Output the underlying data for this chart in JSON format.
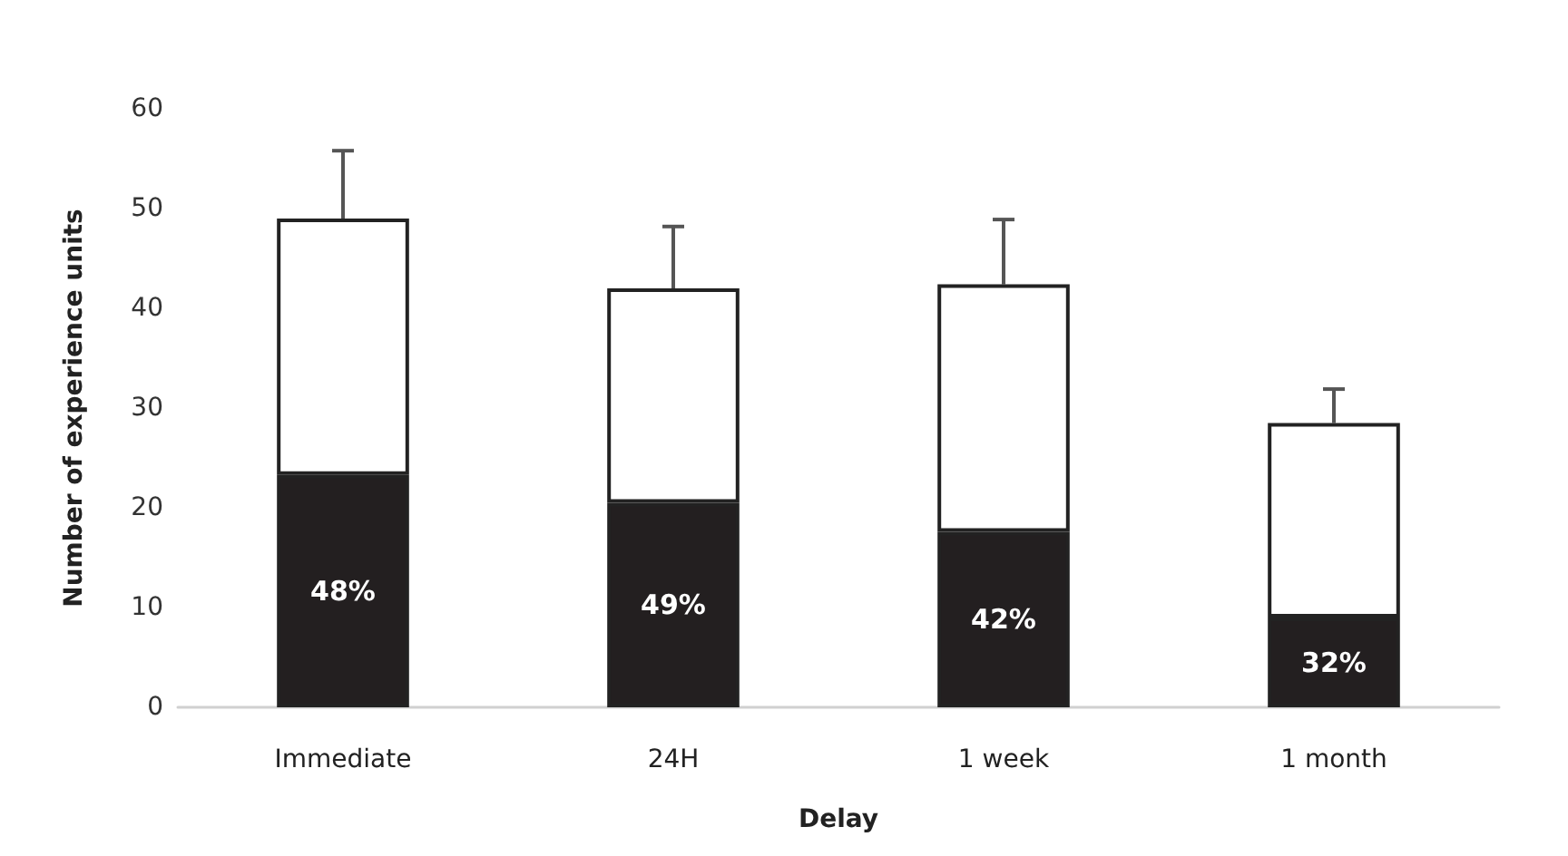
{
  "chart_data": {
    "type": "bar",
    "stacked": true,
    "xlabel": "Delay",
    "ylabel": "Number of experience units",
    "categories": [
      "Immediate",
      "24H",
      "1 week",
      "1 month"
    ],
    "series": [
      {
        "color": "#231f20",
        "values": [
          23.3,
          20.5,
          17.6,
          9.0
        ]
      },
      {
        "color": "#ffffff",
        "values": [
          25.7,
          21.5,
          24.8,
          19.5
        ],
        "errors": [
          [
            49,
            55.8
          ],
          [
            42,
            48.2
          ],
          [
            42.4,
            48.9
          ],
          [
            28.5,
            31.9
          ]
        ]
      }
    ],
    "annotations": [
      "48%",
      "49%",
      "42%",
      "32%"
    ],
    "ylim": [
      0,
      60
    ],
    "yticks": [
      0,
      10,
      20,
      30,
      40,
      50,
      60
    ],
    "grid": false
  }
}
